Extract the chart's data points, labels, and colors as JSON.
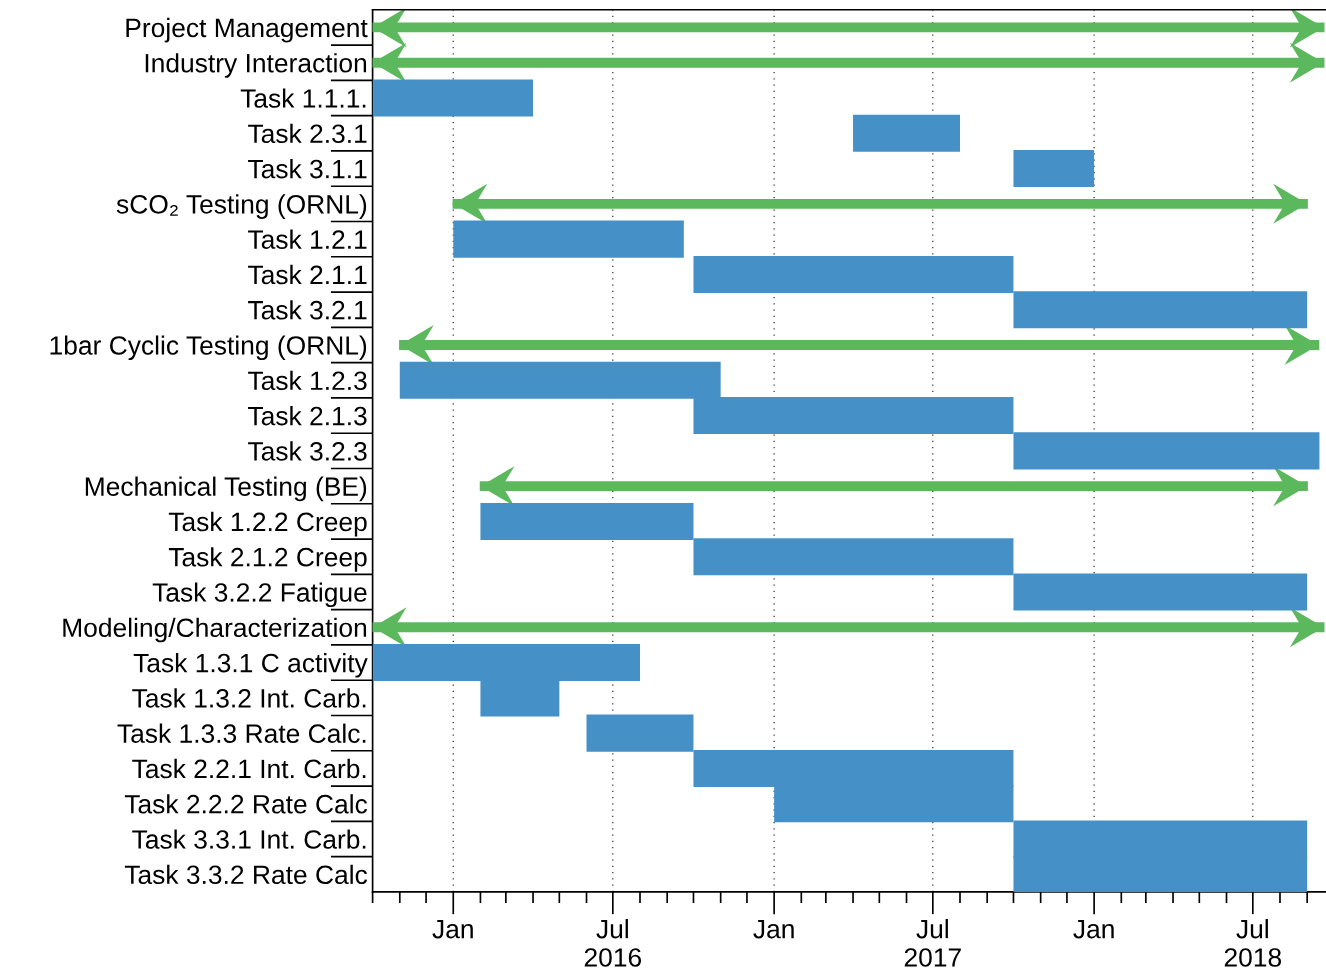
{
  "chart_data": {
    "type": "bar",
    "orientation": "horizontal",
    "legend": false,
    "categories": [
      "Project Management",
      "Industry Interaction",
      "Task 1.1.1.",
      "Task 2.3.1",
      "Task 3.1.1",
      "sCO₂ Testing (ORNL)",
      "Task 1.2.1",
      "Task 2.1.1",
      "Task 3.2.1",
      "1bar Cyclic Testing (ORNL)",
      "Task 1.2.3",
      "Task 2.1.3",
      "Task 3.2.3",
      "Mechanical Testing (BE)",
      "Task 1.2.2 Creep",
      "Task 2.1.2 Creep",
      "Task 3.2.2 Fatigue",
      "Modeling/Characterization",
      "Task 1.3.1 C activity",
      "Task 1.3.2 Int. Carb.",
      "Task 1.3.3 Rate Calc.",
      "Task 2.2.1 Int. Carb.",
      "Task 2.2.2 Rate Calc",
      "Task 3.3.1 Int. Carb.",
      "Task 3.3.2 Rate Calc"
    ],
    "series": [
      {
        "type": "bar",
        "color": "#4590c6",
        "base": [
          null,
          null,
          16709,
          17257,
          17440,
          null,
          16801,
          17075,
          17440,
          null,
          16740,
          17075,
          17440,
          null,
          16832,
          17075,
          17440,
          null,
          16709,
          16832,
          16953,
          17075,
          17167,
          17440,
          17440
        ],
        "values": [
          null,
          null,
          183,
          122,
          92,
          null,
          263,
          365,
          335,
          null,
          366,
          365,
          349,
          null,
          243,
          365,
          335,
          null,
          305,
          90,
          122,
          365,
          273,
          335,
          335
        ]
      },
      {
        "type": "bar",
        "color": "#5cb85c",
        "line_style": "solid",
        "base": [
          16709,
          16709,
          null,
          null,
          null,
          16801,
          null,
          null,
          null,
          16740,
          null,
          null,
          null,
          16832,
          null,
          null,
          null,
          16709,
          null,
          null,
          null,
          null,
          null,
          null,
          null
        ],
        "values": [
          1085,
          1085,
          null,
          null,
          null,
          974,
          null,
          null,
          null,
          1048,
          null,
          null,
          null,
          943,
          null,
          null,
          null,
          1085,
          null,
          null,
          null,
          null,
          null,
          null,
          null
        ]
      }
    ],
    "xlim": [
      "2015-10-01",
      "2018-09-24"
    ],
    "xticks": [
      {
        "value": "2016-01-01",
        "label": "Jan"
      },
      {
        "value": "2016-07-01",
        "label": "Jul\n2016"
      },
      {
        "value": "2017-01-01",
        "label": "Jan"
      },
      {
        "value": "2017-07-01",
        "label": "Jul\n2017"
      },
      {
        "value": "2018-01-01",
        "label": "Jan"
      },
      {
        "value": "2018-07-01",
        "label": "Jul\n2018"
      }
    ],
    "grid": "x"
  }
}
